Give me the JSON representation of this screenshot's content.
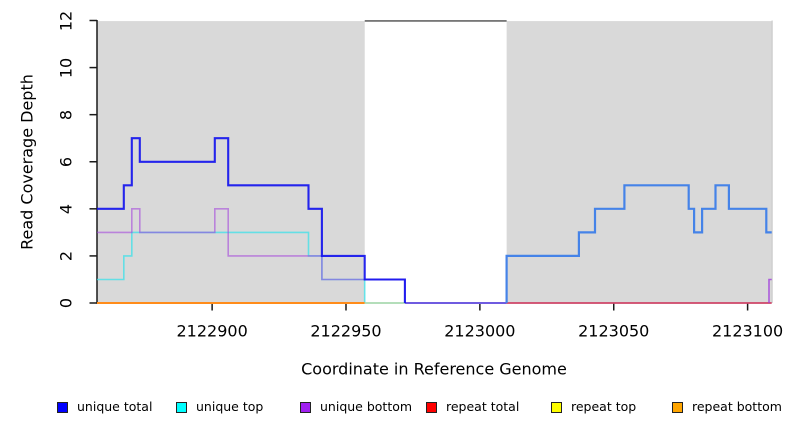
{
  "figure": {
    "y_axis_title": "Read Coverage Depth",
    "x_axis_title": "Coordinate in Reference Genome"
  },
  "chart_data": {
    "type": "line",
    "subtype": "step-coverage-plot",
    "title": "",
    "xlabel": "Coordinate in Reference Genome",
    "ylabel": "Read Coverage Depth",
    "xlim": [
      2122857,
      2123109
    ],
    "ylim": [
      0,
      12
    ],
    "x_ticks": [
      2122900,
      2122950,
      2123000,
      2123050,
      2123100
    ],
    "y_ticks": [
      0,
      2,
      4,
      6,
      8,
      10,
      12
    ],
    "grid": false,
    "shade_color": "#d9d9d9",
    "background_shaded_regions": [
      [
        2122857,
        2122957
      ],
      [
        2123010,
        2123109
      ]
    ],
    "unshaded_gap": [
      2122957,
      2123010
    ],
    "series": [
      {
        "name": "unique top (left region)",
        "color": "rgba(60,224,232,0.75)",
        "width": 1.6,
        "start": [
          2122857,
          1
        ],
        "bp": [
          [
            2122867,
            2
          ],
          [
            2122870,
            3
          ],
          [
            2122936,
            2
          ],
          [
            2122941,
            1
          ],
          [
            2122957,
            0
          ]
        ],
        "end": null
      },
      {
        "name": "unique bottom",
        "color": "rgba(160,60,220,0.55)",
        "width": 1.6,
        "start": [
          2122857,
          3
        ],
        "bp": [
          [
            2122870,
            4
          ],
          [
            2122873,
            3
          ],
          [
            2122901,
            4
          ],
          [
            2122906,
            2
          ],
          [
            2122941,
            1
          ],
          [
            2122972,
            0
          ]
        ],
        "end": 2123010
      },
      {
        "name": "zero-line left (orange)",
        "color": "#ff8c1a",
        "width": 2,
        "start": [
          2122857,
          0
        ],
        "bp": [],
        "end": 2122957
      },
      {
        "name": "zero-line mid (pale green blend)",
        "color": "#a9d9b0",
        "width": 1.8,
        "start": [
          2122957,
          0
        ],
        "bp": [],
        "end": 2122972
      },
      {
        "name": "zero-line mid (violet blend)",
        "color": "#6f5be0",
        "width": 2,
        "start": [
          2122972,
          0
        ],
        "bp": [],
        "end": 2123010
      },
      {
        "name": "zero-line right (crimson blend)",
        "color": "#ce4467",
        "width": 1.8,
        "start": [
          2123010,
          0
        ],
        "bp": [],
        "end": 2123109
      },
      {
        "name": "unique total (left region)",
        "color": "rgba(10,10,238,0.88)",
        "width": 2.1,
        "start": [
          2122857,
          4
        ],
        "bp": [
          [
            2122867,
            5
          ],
          [
            2122870,
            7
          ],
          [
            2122873,
            6
          ],
          [
            2122901,
            7
          ],
          [
            2122906,
            5
          ],
          [
            2122936,
            4
          ],
          [
            2122941,
            2
          ],
          [
            2122957,
            1
          ],
          [
            2122972,
            0
          ]
        ],
        "end": null
      },
      {
        "name": "total (right region, blended blue)",
        "color": "#4583e8",
        "width": 2.2,
        "start": [
          2123010,
          0
        ],
        "bp": [
          [
            2123010,
            2
          ],
          [
            2123037,
            3
          ],
          [
            2123043,
            4
          ],
          [
            2123054,
            5
          ],
          [
            2123078,
            4
          ],
          [
            2123080,
            3
          ],
          [
            2123083,
            4
          ],
          [
            2123088,
            5
          ],
          [
            2123093,
            4
          ],
          [
            2123107,
            3
          ]
        ],
        "end": 2123109
      },
      {
        "name": "unique bottom (right edge rise)",
        "color": "rgba(160,60,220,0.8)",
        "width": 1.6,
        "start": [
          2123108,
          0
        ],
        "bp": [
          [
            2123108,
            1
          ]
        ],
        "end": 2123109
      }
    ],
    "legend": [
      {
        "label": "unique total",
        "color": "#0000ff"
      },
      {
        "label": "unique top",
        "color": "#00ffff"
      },
      {
        "label": "unique bottom",
        "color": "#a020f0"
      },
      {
        "label": "repeat total",
        "color": "#ff0000"
      },
      {
        "label": "repeat top",
        "color": "#ffff00"
      },
      {
        "label": "repeat bottom",
        "color": "#ffa500"
      }
    ],
    "legend_position": "bottom"
  }
}
